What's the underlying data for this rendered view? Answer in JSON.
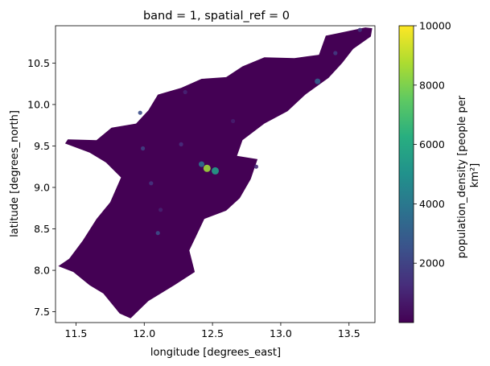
{
  "chart_data": {
    "type": "heatmap",
    "title": "band = 1, spatial_ref = 0",
    "xlabel": "longitude [degrees_east]",
    "ylabel": "latitude [degrees_north]",
    "xlim": [
      11.35,
      13.69
    ],
    "ylim": [
      7.37,
      10.95
    ],
    "xticks": [
      "11.5",
      "12.0",
      "12.5",
      "13.0",
      "13.5"
    ],
    "yticks": [
      "7.5",
      "8.0",
      "8.5",
      "9.0",
      "9.5",
      "10.0",
      "10.5"
    ],
    "colorbar": {
      "label_line1": "population_density [people per",
      "label_line2": "km²]",
      "range": [
        0,
        10000
      ],
      "ticks": [
        "2000",
        "4000",
        "6000",
        "8000",
        "10000"
      ],
      "colormap": "viridis"
    },
    "region_outline": [
      [
        11.37,
        8.05
      ],
      [
        11.45,
        8.14
      ],
      [
        11.55,
        8.36
      ],
      [
        11.65,
        8.62
      ],
      [
        11.75,
        8.82
      ],
      [
        11.83,
        9.12
      ],
      [
        11.72,
        9.3
      ],
      [
        11.6,
        9.42
      ],
      [
        11.42,
        9.53
      ],
      [
        11.44,
        9.58
      ],
      [
        11.65,
        9.57
      ],
      [
        11.76,
        9.72
      ],
      [
        11.94,
        9.77
      ],
      [
        12.03,
        9.93
      ],
      [
        12.1,
        10.12
      ],
      [
        12.27,
        10.2
      ],
      [
        12.42,
        10.31
      ],
      [
        12.6,
        10.33
      ],
      [
        12.72,
        10.46
      ],
      [
        12.88,
        10.57
      ],
      [
        13.1,
        10.56
      ],
      [
        13.28,
        10.6
      ],
      [
        13.33,
        10.83
      ],
      [
        13.42,
        10.86
      ],
      [
        13.62,
        10.93
      ],
      [
        13.67,
        10.92
      ],
      [
        13.66,
        10.82
      ],
      [
        13.53,
        10.67
      ],
      [
        13.45,
        10.5
      ],
      [
        13.35,
        10.32
      ],
      [
        13.18,
        10.12
      ],
      [
        13.05,
        9.92
      ],
      [
        12.88,
        9.77
      ],
      [
        12.72,
        9.57
      ],
      [
        12.68,
        9.38
      ],
      [
        12.83,
        9.34
      ],
      [
        12.78,
        9.1
      ],
      [
        12.7,
        8.87
      ],
      [
        12.6,
        8.72
      ],
      [
        12.44,
        8.62
      ],
      [
        12.38,
        8.41
      ],
      [
        12.33,
        8.24
      ],
      [
        12.37,
        7.98
      ],
      [
        12.22,
        7.82
      ],
      [
        12.03,
        7.63
      ],
      [
        11.9,
        7.42
      ],
      [
        11.82,
        7.48
      ],
      [
        11.7,
        7.72
      ],
      [
        11.6,
        7.82
      ],
      [
        11.48,
        7.98
      ]
    ],
    "hotspots": [
      {
        "lon": 12.46,
        "lat": 9.23,
        "value": 8500
      },
      {
        "lon": 12.52,
        "lat": 9.2,
        "value": 5500
      },
      {
        "lon": 12.42,
        "lat": 9.28,
        "value": 3800
      },
      {
        "lon": 13.27,
        "lat": 10.28,
        "value": 3000
      },
      {
        "lon": 11.97,
        "lat": 9.9,
        "value": 2400
      },
      {
        "lon": 12.1,
        "lat": 8.45,
        "value": 2300
      },
      {
        "lon": 11.99,
        "lat": 9.47,
        "value": 1900
      },
      {
        "lon": 13.4,
        "lat": 10.62,
        "value": 1700
      },
      {
        "lon": 13.58,
        "lat": 10.9,
        "value": 1600
      },
      {
        "lon": 12.05,
        "lat": 9.05,
        "value": 1500
      },
      {
        "lon": 12.27,
        "lat": 9.52,
        "value": 1300
      },
      {
        "lon": 12.82,
        "lat": 9.25,
        "value": 1200
      },
      {
        "lon": 12.3,
        "lat": 10.15,
        "value": 1000
      },
      {
        "lon": 12.12,
        "lat": 8.73,
        "value": 900
      },
      {
        "lon": 12.65,
        "lat": 9.8,
        "value": 800
      }
    ]
  }
}
